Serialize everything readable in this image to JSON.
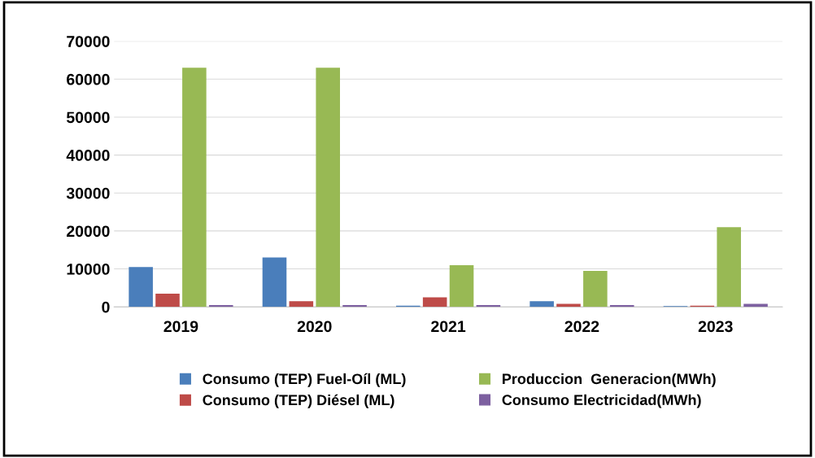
{
  "chart_data": {
    "type": "bar",
    "categories": [
      "2019",
      "2020",
      "2021",
      "2022",
      "2023"
    ],
    "series": [
      {
        "name": "Consumo (TEP) Fuel-Oíl (ML)",
        "color": "#4a7ebb",
        "values": [
          10500,
          13000,
          300,
          1500,
          200
        ]
      },
      {
        "name": "Consumo (TEP) Diésel (ML)",
        "color": "#be4b48",
        "values": [
          3500,
          1500,
          2500,
          800,
          300
        ]
      },
      {
        "name": "Produccion  Generacion(MWh)",
        "color": "#98b954",
        "values": [
          63000,
          63000,
          11000,
          9500,
          21000
        ]
      },
      {
        "name": "Consumo Electricidad(MWh)",
        "color": "#7d60a0",
        "values": [
          500,
          500,
          500,
          500,
          800
        ]
      }
    ],
    "ylim": [
      0,
      70000
    ],
    "yticks": [
      0,
      10000,
      20000,
      30000,
      40000,
      50000,
      60000,
      70000
    ],
    "grid": "y",
    "legend": "bottom"
  }
}
